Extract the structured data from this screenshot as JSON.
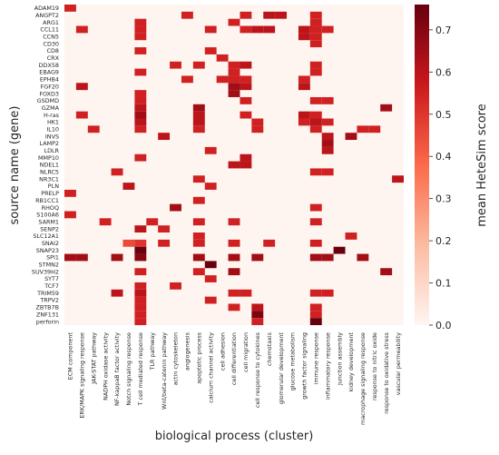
{
  "chart_data": {
    "type": "heatmap",
    "xlabel": "biological process (cluster)",
    "ylabel": "source name (gene)",
    "colorbar_label": "mean HeteSim score",
    "colorbar_range": [
      0.0,
      0.76
    ],
    "colorbar_ticks": [
      "0.0",
      "0.1",
      "0.2",
      "0.3",
      "0.4",
      "0.5",
      "0.6",
      "0.7"
    ],
    "colormap": [
      "#fff5f0",
      "#fcbba1",
      "#fb6a4a",
      "#cb181d",
      "#67000d"
    ],
    "x_categories": [
      "ECM component",
      "ERK/MAPK signaling response",
      "JAK-STAT pathway",
      "NADPH oxidase activity",
      "NF-kappaB factor activity",
      "Notch signaling response",
      "T cell mediated response",
      "TLR pathway",
      "Wnt/beta-catenin pathway",
      "actin cytoskeleton",
      "angiogenesis",
      "apoptotic process",
      "calcium channel activity",
      "cell adhesion",
      "cell differentiation",
      "cell migration",
      "cell response to cytokines",
      "chemotaxis",
      "glomerular development",
      "glucose metabolism",
      "growth factor signaling",
      "immune response",
      "inflammatory response",
      "junction assembly",
      "kidney development",
      "macrophage signaling response",
      "response to nitric oxide",
      "response to oxidative stress",
      "vascular permeability"
    ],
    "y_categories": [
      "ADAM19",
      "ANGPT2",
      "ARG1",
      "CCL11",
      "CCN5",
      "CD30",
      "CD8",
      "CRX",
      "DDX58",
      "EBAG9",
      "EPHB4",
      "FGF20",
      "FOXD3",
      "GSDMD",
      "GZMA",
      "H-ras",
      "HK1",
      "IL10",
      "INVS",
      "LAMP2",
      "LDLR",
      "MMP10",
      "NDEL1",
      "NLRC5",
      "NR3C1",
      "PLN",
      "PRELP",
      "RB1CC1",
      "RHOQ",
      "S100A6",
      "SARM1",
      "SENP2",
      "SLC12A1",
      "SNAI2",
      "SNAP23",
      "SPI1",
      "STMN2",
      "SUV39H2",
      "SYT7",
      "TCF7",
      "TRIM59",
      "TRPV2",
      "ZBTB7B",
      "ZNF131",
      "perforin"
    ],
    "cells": [
      [
        0,
        0,
        0.55
      ],
      [
        1,
        10,
        0.55
      ],
      [
        1,
        15,
        0.55
      ],
      [
        1,
        17,
        0.6
      ],
      [
        1,
        18,
        0.6
      ],
      [
        1,
        21,
        0.55
      ],
      [
        2,
        6,
        0.55
      ],
      [
        2,
        14,
        0.55
      ],
      [
        2,
        21,
        0.55
      ],
      [
        3,
        1,
        0.55
      ],
      [
        3,
        6,
        0.55
      ],
      [
        3,
        12,
        0.55
      ],
      [
        3,
        15,
        0.55
      ],
      [
        3,
        16,
        0.6
      ],
      [
        3,
        17,
        0.6
      ],
      [
        3,
        20,
        0.6
      ],
      [
        3,
        21,
        0.55
      ],
      [
        3,
        22,
        0.55
      ],
      [
        4,
        6,
        0.55
      ],
      [
        4,
        20,
        0.6
      ],
      [
        4,
        21,
        0.55
      ],
      [
        5,
        21,
        0.55
      ],
      [
        6,
        6,
        0.55
      ],
      [
        6,
        12,
        0.55
      ],
      [
        7,
        13,
        0.55
      ],
      [
        8,
        9,
        0.55
      ],
      [
        8,
        11,
        0.55
      ],
      [
        8,
        14,
        0.55
      ],
      [
        8,
        15,
        0.6
      ],
      [
        8,
        21,
        0.55
      ],
      [
        9,
        6,
        0.55
      ],
      [
        9,
        14,
        0.55
      ],
      [
        9,
        21,
        0.55
      ],
      [
        10,
        10,
        0.55
      ],
      [
        10,
        13,
        0.55
      ],
      [
        10,
        14,
        0.55
      ],
      [
        10,
        15,
        0.55
      ],
      [
        10,
        20,
        0.55
      ],
      [
        11,
        1,
        0.6
      ],
      [
        11,
        14,
        0.65
      ],
      [
        11,
        15,
        0.6
      ],
      [
        11,
        20,
        0.6
      ],
      [
        12,
        6,
        0.55
      ],
      [
        12,
        14,
        0.65
      ],
      [
        13,
        6,
        0.55
      ],
      [
        13,
        15,
        0.55
      ],
      [
        13,
        21,
        0.55
      ],
      [
        13,
        22,
        0.55
      ],
      [
        14,
        6,
        0.6
      ],
      [
        14,
        11,
        0.65
      ],
      [
        14,
        27,
        0.65
      ],
      [
        15,
        1,
        0.55
      ],
      [
        15,
        6,
        0.65
      ],
      [
        15,
        11,
        0.6
      ],
      [
        15,
        15,
        0.55
      ],
      [
        15,
        20,
        0.6
      ],
      [
        15,
        21,
        0.55
      ],
      [
        16,
        6,
        0.6
      ],
      [
        16,
        11,
        0.6
      ],
      [
        16,
        16,
        0.55
      ],
      [
        16,
        20,
        0.55
      ],
      [
        16,
        21,
        0.6
      ],
      [
        16,
        22,
        0.55
      ],
      [
        17,
        2,
        0.55
      ],
      [
        17,
        6,
        0.55
      ],
      [
        17,
        11,
        0.55
      ],
      [
        17,
        16,
        0.55
      ],
      [
        17,
        21,
        0.55
      ],
      [
        17,
        25,
        0.55
      ],
      [
        17,
        26,
        0.55
      ],
      [
        18,
        8,
        0.6
      ],
      [
        18,
        22,
        0.6
      ],
      [
        18,
        24,
        0.65
      ],
      [
        19,
        22,
        0.65
      ],
      [
        20,
        12,
        0.55
      ],
      [
        20,
        22,
        0.6
      ],
      [
        21,
        6,
        0.55
      ],
      [
        21,
        15,
        0.6
      ],
      [
        22,
        14,
        0.6
      ],
      [
        22,
        15,
        0.6
      ],
      [
        23,
        4,
        0.55
      ],
      [
        23,
        21,
        0.55
      ],
      [
        23,
        22,
        0.55
      ],
      [
        24,
        11,
        0.55
      ],
      [
        24,
        28,
        0.6
      ],
      [
        25,
        5,
        0.6
      ],
      [
        25,
        12,
        0.55
      ],
      [
        26,
        0,
        0.55
      ],
      [
        27,
        11,
        0.55
      ],
      [
        28,
        9,
        0.65
      ],
      [
        28,
        21,
        0.55
      ],
      [
        29,
        0,
        0.55
      ],
      [
        30,
        3,
        0.55
      ],
      [
        30,
        7,
        0.55
      ],
      [
        30,
        11,
        0.55
      ],
      [
        30,
        14,
        0.55
      ],
      [
        30,
        21,
        0.55
      ],
      [
        31,
        6,
        0.6
      ],
      [
        31,
        8,
        0.55
      ],
      [
        32,
        11,
        0.55
      ],
      [
        32,
        24,
        0.55
      ],
      [
        33,
        5,
        0.45
      ],
      [
        33,
        6,
        0.5
      ],
      [
        33,
        8,
        0.55
      ],
      [
        33,
        11,
        0.55
      ],
      [
        33,
        14,
        0.55
      ],
      [
        33,
        17,
        0.55
      ],
      [
        33,
        21,
        0.55
      ],
      [
        34,
        6,
        0.75
      ],
      [
        34,
        23,
        0.76
      ],
      [
        35,
        0,
        0.65
      ],
      [
        35,
        1,
        0.65
      ],
      [
        35,
        4,
        0.65
      ],
      [
        35,
        6,
        0.7
      ],
      [
        35,
        11,
        0.65
      ],
      [
        35,
        14,
        0.65
      ],
      [
        35,
        16,
        0.65
      ],
      [
        35,
        21,
        0.65
      ],
      [
        35,
        22,
        0.65
      ],
      [
        35,
        25,
        0.65
      ],
      [
        36,
        12,
        0.76
      ],
      [
        37,
        6,
        0.55
      ],
      [
        37,
        11,
        0.55
      ],
      [
        37,
        14,
        0.65
      ],
      [
        37,
        27,
        0.65
      ],
      [
        38,
        12,
        0.55
      ],
      [
        39,
        6,
        0.55
      ],
      [
        39,
        9,
        0.55
      ],
      [
        40,
        4,
        0.6
      ],
      [
        40,
        6,
        0.6
      ],
      [
        40,
        14,
        0.55
      ],
      [
        40,
        15,
        0.55
      ],
      [
        40,
        21,
        0.55
      ],
      [
        40,
        22,
        0.55
      ],
      [
        41,
        6,
        0.55
      ],
      [
        41,
        12,
        0.55
      ],
      [
        42,
        6,
        0.55
      ],
      [
        42,
        14,
        0.55
      ],
      [
        42,
        16,
        0.6
      ],
      [
        42,
        21,
        0.55
      ],
      [
        43,
        6,
        0.55
      ],
      [
        43,
        16,
        0.72
      ],
      [
        43,
        21,
        0.55
      ],
      [
        44,
        6,
        0.55
      ],
      [
        44,
        16,
        0.55
      ],
      [
        44,
        21,
        0.76
      ]
    ]
  }
}
